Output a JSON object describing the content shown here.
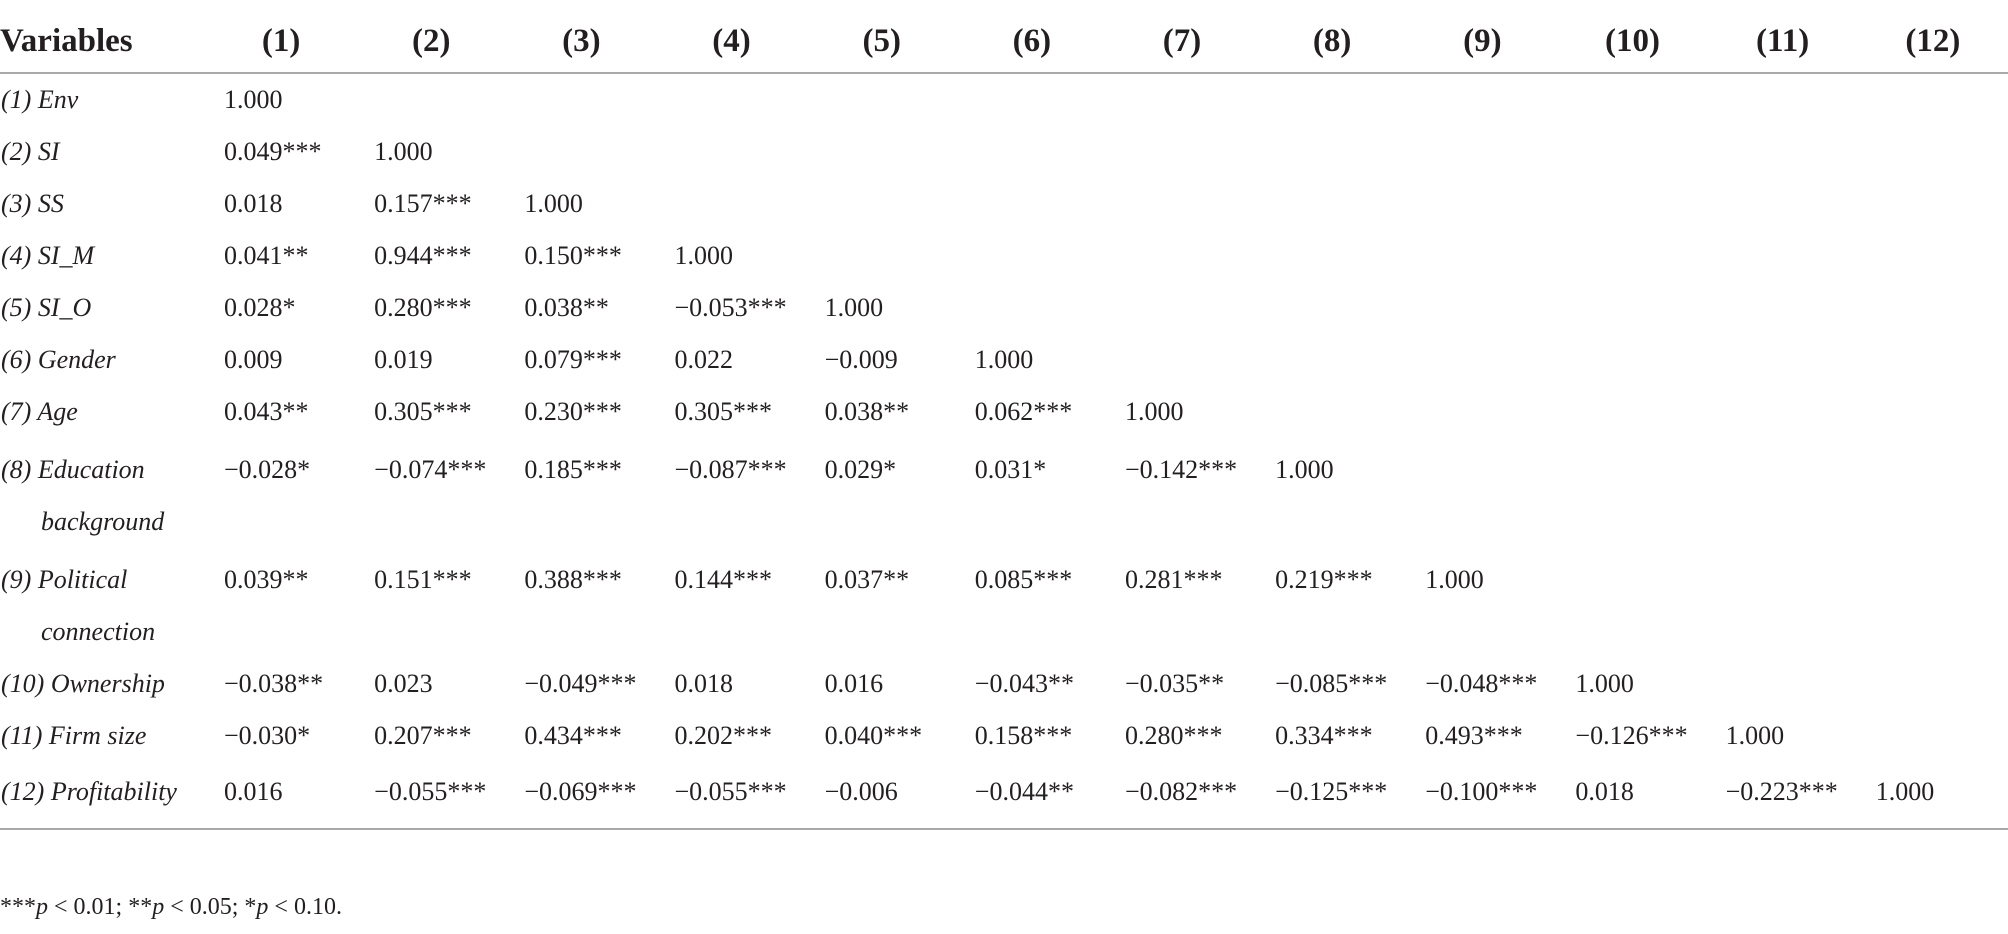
{
  "table": {
    "headers": [
      "Variables",
      "(1)",
      "(2)",
      "(3)",
      "(4)",
      "(5)",
      "(6)",
      "(7)",
      "(8)",
      "(9)",
      "(10)",
      "(11)",
      "(12)"
    ],
    "rows": [
      {
        "label": "(1) Env",
        "label2": "",
        "values": [
          "1.000",
          "",
          "",
          "",
          "",
          "",
          "",
          "",
          "",
          "",
          "",
          ""
        ]
      },
      {
        "label": "(2) SI",
        "label2": "",
        "values": [
          "0.049***",
          "1.000",
          "",
          "",
          "",
          "",
          "",
          "",
          "",
          "",
          "",
          ""
        ]
      },
      {
        "label": "(3) SS",
        "label2": "",
        "values": [
          "0.018",
          "0.157***",
          "1.000",
          "",
          "",
          "",
          "",
          "",
          "",
          "",
          "",
          ""
        ]
      },
      {
        "label": "(4) SI_M",
        "label2": "",
        "values": [
          "0.041**",
          "0.944***",
          "0.150***",
          "1.000",
          "",
          "",
          "",
          "",
          "",
          "",
          "",
          ""
        ]
      },
      {
        "label": "(5) SI_O",
        "label2": "",
        "values": [
          "0.028*",
          "0.280***",
          "0.038**",
          "−0.053***",
          "1.000",
          "",
          "",
          "",
          "",
          "",
          "",
          ""
        ]
      },
      {
        "label": "(6) Gender",
        "label2": "",
        "values": [
          "0.009",
          "0.019",
          "0.079***",
          "0.022",
          "−0.009",
          "1.000",
          "",
          "",
          "",
          "",
          "",
          ""
        ]
      },
      {
        "label": "(7) Age",
        "label2": "",
        "values": [
          "0.043**",
          "0.305***",
          "0.230***",
          "0.305***",
          "0.038**",
          "0.062***",
          "1.000",
          "",
          "",
          "",
          "",
          ""
        ]
      },
      {
        "label": "(8) Education",
        "label2": "background",
        "values": [
          "−0.028*",
          "−0.074***",
          "0.185***",
          "−0.087***",
          "0.029*",
          "0.031*",
          "−0.142***",
          "1.000",
          "",
          "",
          "",
          ""
        ]
      },
      {
        "label": "(9) Political",
        "label2": "connection",
        "values": [
          "0.039**",
          "0.151***",
          "0.388***",
          "0.144***",
          "0.037**",
          "0.085***",
          "0.281***",
          "0.219***",
          "1.000",
          "",
          "",
          ""
        ]
      },
      {
        "label": "(10) Ownership",
        "label2": "",
        "values": [
          "−0.038**",
          "0.023",
          "−0.049***",
          "0.018",
          "0.016",
          "−0.043**",
          "−0.035**",
          "−0.085***",
          "−0.048***",
          "1.000",
          "",
          ""
        ]
      },
      {
        "label": "(11) Firm size",
        "label2": "",
        "values": [
          "−0.030*",
          "0.207***",
          "0.434***",
          "0.202***",
          "0.040***",
          "0.158***",
          "0.280***",
          "0.334***",
          "0.493***",
          "−0.126***",
          "1.000",
          ""
        ]
      },
      {
        "label": "(12) Profitability",
        "label2": "",
        "values": [
          "0.016",
          "−0.055***",
          "−0.069***",
          "−0.055***",
          "−0.006",
          "−0.044**",
          "−0.082***",
          "−0.125***",
          "−0.100***",
          "0.018",
          "−0.223***",
          "1.000"
        ]
      }
    ]
  },
  "footnote": {
    "stars3": "***",
    "p1": "p",
    "v1": " < 0.01; ",
    "stars2": "**",
    "p2": "p",
    "v2": " < 0.05; ",
    "stars1": "*",
    "p3": "p",
    "v3": " < 0.10."
  }
}
